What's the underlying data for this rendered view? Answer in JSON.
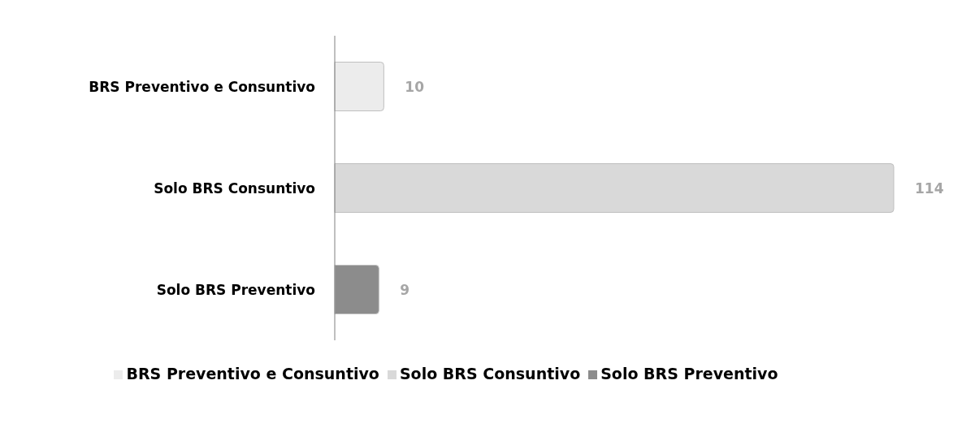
{
  "chart_data": {
    "type": "bar",
    "orientation": "horizontal",
    "stacked": true,
    "categories": [
      "BRS Preventivo e Consuntivo",
      "Solo BRS Consuntivo",
      "Solo BRS Preventivo"
    ],
    "series": [
      {
        "name": "Solo BRS Preventivo",
        "color": "#8c8c8c",
        "values": [
          null,
          null,
          9
        ]
      },
      {
        "name": "Solo BRS Consuntivo",
        "color": "#d9d9d9",
        "values": [
          null,
          114,
          null
        ]
      },
      {
        "name": "BRS Preventivo e Consuntivo",
        "color": "#ececec",
        "values": [
          10,
          null,
          null
        ]
      }
    ],
    "data_labels": true,
    "legend": "bottom",
    "grid": false
  }
}
